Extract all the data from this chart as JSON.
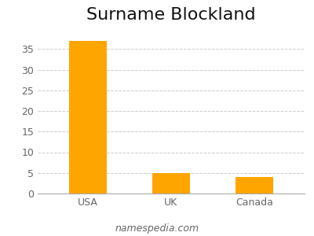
{
  "title": "Surname Blockland",
  "categories": [
    "USA",
    "UK",
    "Canada"
  ],
  "values": [
    37,
    5,
    4
  ],
  "bar_color": "#FFA500",
  "bar_width": 0.45,
  "ylim": [
    0,
    40
  ],
  "yticks": [
    0,
    5,
    10,
    15,
    20,
    25,
    30,
    35
  ],
  "background_color": "#ffffff",
  "grid_color": "#cccccc",
  "title_fontsize": 16,
  "tick_fontsize": 9,
  "footer_text": "namespedia.com",
  "footer_fontsize": 9,
  "spine_color": "#aaaaaa"
}
